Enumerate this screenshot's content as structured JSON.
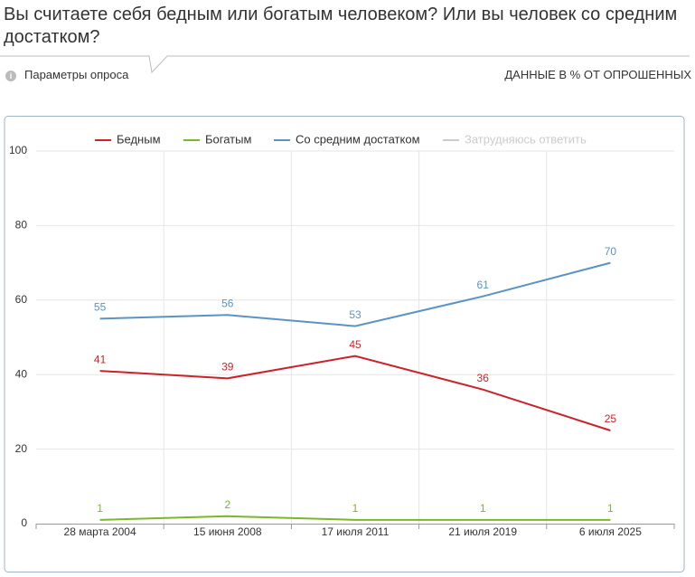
{
  "header": {
    "params": "Параметры опроса",
    "note": "ДАННЫЕ В % ОТ ОПРОШЕННЫХ"
  },
  "chart_data": {
    "type": "line",
    "title": "Вы считаете себя бедным или богатым человеком? Или вы человек со средним достатком?",
    "categories": [
      "28 марта 2004",
      "15 июня 2008",
      "17 июля 2011",
      "21 июля 2019",
      "6 июля 2025"
    ],
    "series": [
      {
        "name": "Бедным",
        "color": "#cc2229",
        "values": [
          41,
          39,
          45,
          36,
          25
        ]
      },
      {
        "name": "Богатым",
        "color": "#7ab829",
        "values": [
          1,
          2,
          1,
          1,
          1
        ]
      },
      {
        "name": "Со средним достатком",
        "color": "#5b93c4",
        "values": [
          55,
          56,
          53,
          61,
          70
        ]
      },
      {
        "name": "Затрудняюсь ответить",
        "color": "#cccccc",
        "hidden": true,
        "values": [
          null,
          null,
          null,
          null,
          null
        ]
      }
    ],
    "ylim": [
      0,
      100
    ],
    "yticks": [
      0,
      20,
      40,
      60,
      80,
      100
    ],
    "grid": true,
    "legend": "top"
  }
}
